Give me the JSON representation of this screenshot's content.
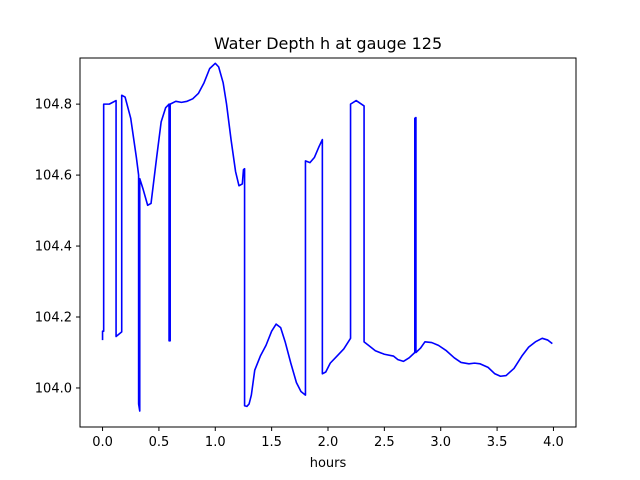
{
  "chart_data": {
    "type": "line",
    "title": "Water Depth h at gauge 125",
    "xlabel": "hours",
    "ylabel": "",
    "xlim": [
      -0.2,
      4.2
    ],
    "ylim": [
      103.89,
      104.93
    ],
    "xticks": [
      0.0,
      0.5,
      1.0,
      1.5,
      2.0,
      2.5,
      3.0,
      3.5,
      4.0
    ],
    "xtick_labels": [
      "0.0",
      "0.5",
      "1.0",
      "1.5",
      "2.0",
      "2.5",
      "3.0",
      "3.5",
      "4.0"
    ],
    "yticks": [
      104.0,
      104.2,
      104.4,
      104.6,
      104.8
    ],
    "ytick_labels": [
      "104.0",
      "104.2",
      "104.4",
      "104.6",
      "104.8"
    ],
    "grid": false,
    "series": [
      {
        "color": "#0000ff",
        "points": [
          [
            0.0,
            104.135
          ],
          [
            0.0,
            104.16
          ],
          [
            0.01,
            104.16
          ],
          [
            0.01,
            104.8
          ],
          [
            0.06,
            104.8
          ],
          [
            0.12,
            104.81
          ],
          [
            0.12,
            104.145
          ],
          [
            0.17,
            104.158
          ],
          [
            0.17,
            104.825
          ],
          [
            0.2,
            104.82
          ],
          [
            0.25,
            104.76
          ],
          [
            0.3,
            104.65
          ],
          [
            0.32,
            104.6
          ],
          [
            0.32,
            103.955
          ],
          [
            0.33,
            103.935
          ],
          [
            0.33,
            104.59
          ],
          [
            0.36,
            104.56
          ],
          [
            0.4,
            104.515
          ],
          [
            0.43,
            104.52
          ],
          [
            0.48,
            104.65
          ],
          [
            0.52,
            104.75
          ],
          [
            0.56,
            104.79
          ],
          [
            0.59,
            104.8
          ],
          [
            0.59,
            104.133
          ],
          [
            0.6,
            104.133
          ],
          [
            0.6,
            104.8
          ],
          [
            0.65,
            104.808
          ],
          [
            0.7,
            104.805
          ],
          [
            0.75,
            104.808
          ],
          [
            0.8,
            104.815
          ],
          [
            0.85,
            104.83
          ],
          [
            0.9,
            104.86
          ],
          [
            0.95,
            104.9
          ],
          [
            1.0,
            104.915
          ],
          [
            1.03,
            104.905
          ],
          [
            1.07,
            104.86
          ],
          [
            1.1,
            104.8
          ],
          [
            1.14,
            104.7
          ],
          [
            1.18,
            104.61
          ],
          [
            1.21,
            104.57
          ],
          [
            1.24,
            104.575
          ],
          [
            1.25,
            104.615
          ],
          [
            1.26,
            104.618
          ],
          [
            1.26,
            103.95
          ],
          [
            1.28,
            103.948
          ],
          [
            1.3,
            103.955
          ],
          [
            1.32,
            103.98
          ],
          [
            1.35,
            104.05
          ],
          [
            1.4,
            104.09
          ],
          [
            1.45,
            104.12
          ],
          [
            1.5,
            104.16
          ],
          [
            1.54,
            104.18
          ],
          [
            1.58,
            104.17
          ],
          [
            1.62,
            104.13
          ],
          [
            1.67,
            104.07
          ],
          [
            1.72,
            104.015
          ],
          [
            1.76,
            103.99
          ],
          [
            1.8,
            103.98
          ],
          [
            1.8,
            104.64
          ],
          [
            1.84,
            104.635
          ],
          [
            1.88,
            104.65
          ],
          [
            1.92,
            104.68
          ],
          [
            1.95,
            104.7
          ],
          [
            1.95,
            104.04
          ],
          [
            1.98,
            104.045
          ],
          [
            2.02,
            104.07
          ],
          [
            2.08,
            104.09
          ],
          [
            2.14,
            104.11
          ],
          [
            2.2,
            104.14
          ],
          [
            2.2,
            104.8
          ],
          [
            2.25,
            104.81
          ],
          [
            2.32,
            104.795
          ],
          [
            2.32,
            104.13
          ],
          [
            2.36,
            104.12
          ],
          [
            2.42,
            104.105
          ],
          [
            2.5,
            104.095
          ],
          [
            2.58,
            104.09
          ],
          [
            2.62,
            104.08
          ],
          [
            2.67,
            104.075
          ],
          [
            2.72,
            104.085
          ],
          [
            2.77,
            104.1
          ],
          [
            2.77,
            104.76
          ],
          [
            2.78,
            104.762
          ],
          [
            2.78,
            104.1
          ],
          [
            2.82,
            104.112
          ],
          [
            2.86,
            104.13
          ],
          [
            2.92,
            104.128
          ],
          [
            2.98,
            104.12
          ],
          [
            3.05,
            104.105
          ],
          [
            3.12,
            104.085
          ],
          [
            3.18,
            104.072
          ],
          [
            3.25,
            104.068
          ],
          [
            3.3,
            104.07
          ],
          [
            3.35,
            104.068
          ],
          [
            3.42,
            104.058
          ],
          [
            3.48,
            104.04
          ],
          [
            3.53,
            104.033
          ],
          [
            3.58,
            104.035
          ],
          [
            3.65,
            104.055
          ],
          [
            3.72,
            104.09
          ],
          [
            3.78,
            104.115
          ],
          [
            3.84,
            104.13
          ],
          [
            3.9,
            104.14
          ],
          [
            3.95,
            104.135
          ],
          [
            3.99,
            104.125
          ]
        ]
      }
    ]
  }
}
